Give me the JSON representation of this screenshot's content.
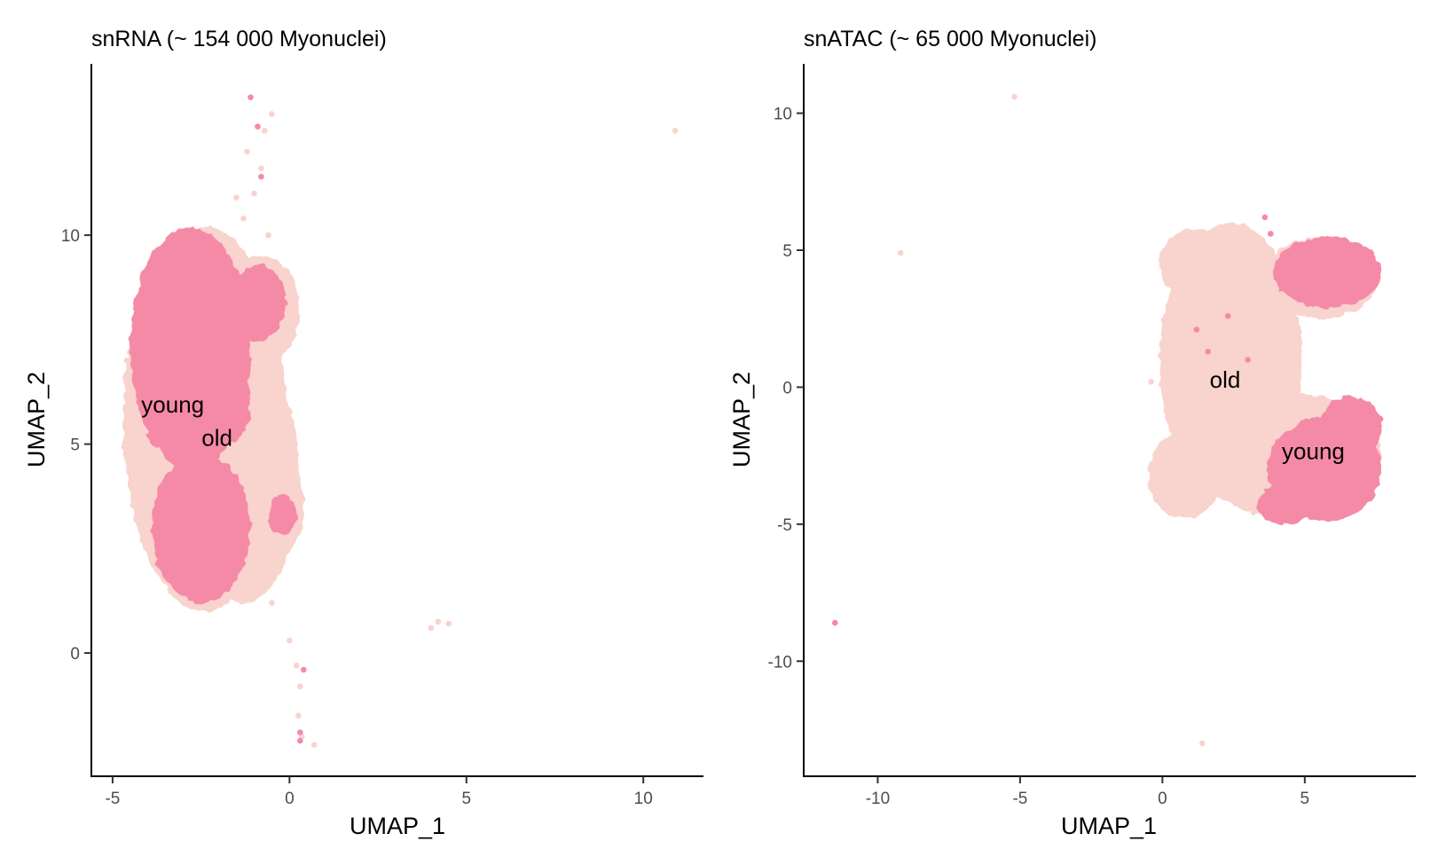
{
  "colors": {
    "old": "#f9d3cd",
    "young": "#f58aa7"
  },
  "chart_data": [
    {
      "type": "scatter",
      "title": "snRNA (~ 154 000 Myonuclei)",
      "xlabel": "UMAP_1",
      "ylabel": "UMAP_2",
      "xlim": [
        -5.6,
        11.7
      ],
      "ylim": [
        -2.95,
        14.1
      ],
      "xticks": [
        -5,
        0,
        5,
        10
      ],
      "xtick_labels": [
        "-5",
        "0",
        "5",
        "10"
      ],
      "yticks": [
        0,
        5,
        10
      ],
      "ytick_labels": [
        "0",
        "5",
        "10"
      ],
      "grid": false,
      "series": [
        {
          "name": "old",
          "regions": [
            {
              "cx": -2.4,
              "cy": 5.6,
              "rx": 2.3,
              "ry": 4.6
            },
            {
              "cx": -1.3,
              "cy": 4.2,
              "rx": 1.6,
              "ry": 3.0
            },
            {
              "cx": -0.8,
              "cy": 8.2,
              "rx": 1.1,
              "ry": 1.3
            },
            {
              "cx": -0.4,
              "cy": 3.5,
              "rx": 0.8,
              "ry": 1.2
            }
          ],
          "points": [
            [
              -1.0,
              11.0
            ],
            [
              -0.8,
              11.6
            ],
            [
              -1.2,
              12.0
            ],
            [
              -0.7,
              12.5
            ],
            [
              -0.5,
              12.9
            ],
            [
              -1.3,
              10.4
            ],
            [
              -1.5,
              10.9
            ],
            [
              -0.6,
              10.0
            ],
            [
              0.0,
              0.3
            ],
            [
              0.2,
              -0.3
            ],
            [
              0.3,
              -0.8
            ],
            [
              0.25,
              -1.5
            ],
            [
              0.35,
              -2.0
            ],
            [
              0.7,
              -2.2
            ],
            [
              4.2,
              0.75
            ],
            [
              4.0,
              0.6
            ],
            [
              4.5,
              0.7
            ],
            [
              10.9,
              12.5
            ],
            [
              -0.5,
              1.2
            ],
            [
              -4.6,
              7.0
            ]
          ]
        },
        {
          "name": "young",
          "regions": [
            {
              "cx": -2.8,
              "cy": 7.3,
              "rx": 1.7,
              "ry": 2.9
            },
            {
              "cx": -2.5,
              "cy": 3.0,
              "rx": 1.4,
              "ry": 1.8
            },
            {
              "cx": -0.9,
              "cy": 8.4,
              "rx": 0.8,
              "ry": 0.9
            },
            {
              "cx": -1.7,
              "cy": 6.0,
              "rx": 0.6,
              "ry": 1.0
            },
            {
              "cx": -0.2,
              "cy": 3.3,
              "rx": 0.4,
              "ry": 0.5
            }
          ],
          "points": [
            [
              -1.1,
              13.3
            ],
            [
              -0.9,
              12.6
            ],
            [
              -0.8,
              11.4
            ],
            [
              0.4,
              -0.4
            ],
            [
              0.3,
              -1.9
            ],
            [
              0.3,
              -2.1
            ]
          ]
        }
      ],
      "annotations": [
        {
          "text": "young",
          "x": -3.3,
          "y": 5.9
        },
        {
          "text": "old",
          "x": -2.05,
          "y": 5.1
        }
      ]
    },
    {
      "type": "scatter",
      "title": "snATAC (~ 65 000 Myonuclei)",
      "xlabel": "UMAP_1",
      "ylabel": "UMAP_2",
      "xlim": [
        -12.6,
        8.9
      ],
      "ylim": [
        -14.2,
        11.8
      ],
      "xticks": [
        -10,
        -5,
        0,
        5
      ],
      "xtick_labels": [
        "-10",
        "-5",
        "0",
        "5"
      ],
      "yticks": [
        -10,
        -5,
        0,
        5,
        10
      ],
      "ytick_labels": [
        "-10",
        "-5",
        "0",
        "5",
        "10"
      ],
      "grid": false,
      "series": [
        {
          "name": "old",
          "regions": [
            {
              "cx": 2.4,
              "cy": 1.0,
              "rx": 2.5,
              "ry": 5.0
            },
            {
              "cx": 1.2,
              "cy": 4.5,
              "rx": 1.3,
              "ry": 1.3
            },
            {
              "cx": 4.5,
              "cy": -2.5,
              "rx": 3.2,
              "ry": 2.3
            },
            {
              "cx": 5.6,
              "cy": 4.0,
              "rx": 2.0,
              "ry": 1.5
            },
            {
              "cx": 0.8,
              "cy": -3.2,
              "rx": 1.3,
              "ry": 1.6
            }
          ],
          "points": [
            [
              -5.2,
              10.6
            ],
            [
              -9.2,
              4.9
            ],
            [
              1.4,
              -13.0
            ],
            [
              0.3,
              0.8
            ],
            [
              -0.4,
              0.2
            ]
          ]
        },
        {
          "name": "young",
          "regions": [
            {
              "cx": 5.8,
              "cy": 4.2,
              "rx": 1.9,
              "ry": 1.3
            },
            {
              "cx": 5.7,
              "cy": -3.0,
              "rx": 2.0,
              "ry": 1.9
            },
            {
              "cx": 6.6,
              "cy": -1.5,
              "rx": 1.1,
              "ry": 1.2
            },
            {
              "cx": 4.3,
              "cy": -4.3,
              "rx": 1.0,
              "ry": 0.7
            }
          ],
          "points": [
            [
              -11.5,
              -8.6
            ],
            [
              3.6,
              6.2
            ],
            [
              3.8,
              5.6
            ],
            [
              1.2,
              2.1
            ],
            [
              1.6,
              1.3
            ],
            [
              2.3,
              2.6
            ],
            [
              3.0,
              1.0
            ]
          ]
        }
      ],
      "annotations": [
        {
          "text": "old",
          "x": 2.2,
          "y": 0.2
        },
        {
          "text": "young",
          "x": 5.3,
          "y": -2.4
        }
      ]
    }
  ]
}
